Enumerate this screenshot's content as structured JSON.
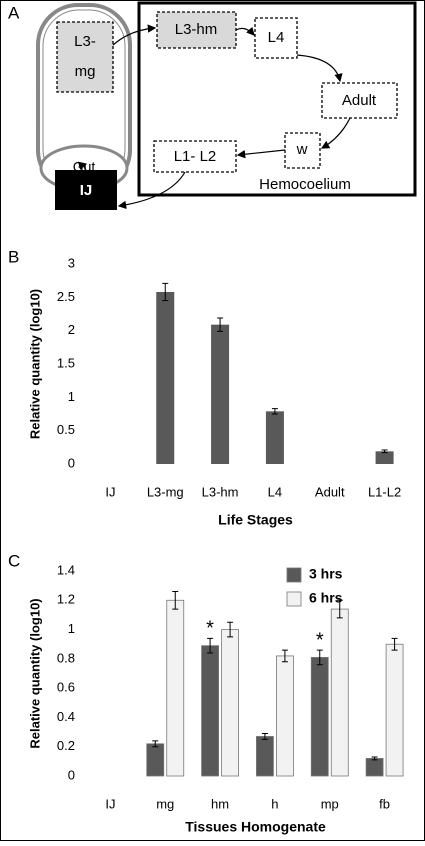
{
  "panel_labels": [
    "A",
    "B",
    "C"
  ],
  "diagram": {
    "midgut_stage": [
      "L3-",
      "mg"
    ],
    "gut": "Gut",
    "infective_juvenile": "IJ",
    "compartment": "Hemocoelium",
    "stages": [
      "L3-hm",
      "L4",
      "Adult",
      "w",
      "L1- L2"
    ]
  },
  "chart_data": [
    {
      "type": "bar",
      "ylabel": "Relative quantity (log10)",
      "xlabel": "Life Stages",
      "categories": [
        "IJ",
        "L3-mg",
        "L3-hm",
        "L4",
        "Adult",
        "L1-L2"
      ],
      "series": [
        {
          "color": "#595959",
          "values": [
            0,
            2.58,
            2.09,
            0.79,
            0,
            0.19
          ],
          "errors": [
            0,
            0.13,
            0.1,
            0.04,
            0,
            0.02
          ]
        }
      ],
      "ylim": [
        0,
        3
      ],
      "yticks": [
        0,
        0.5,
        1,
        1.5,
        2,
        2.5,
        3
      ],
      "grid": false
    },
    {
      "type": "bar",
      "ylabel": "Relative quantity (log10)",
      "xlabel": "Tissues Homogenate",
      "categories": [
        "IJ",
        "mg",
        "hm",
        "h",
        "mp",
        "fb"
      ],
      "series": [
        {
          "name": "3 hrs",
          "color": "#595959",
          "values": [
            0,
            0.22,
            0.89,
            0.27,
            0.81,
            0.12
          ],
          "errors": [
            0,
            0.02,
            0.05,
            0.02,
            0.05,
            0.01
          ]
        },
        {
          "name": "6 hrs",
          "color": "#f2f2f2",
          "values": [
            0,
            1.2,
            1.0,
            0.82,
            1.14,
            0.9
          ],
          "errors": [
            0,
            0.06,
            0.05,
            0.04,
            0.06,
            0.04
          ]
        }
      ],
      "annotations": [
        {
          "text": "*",
          "series": 0,
          "category": "hm"
        },
        {
          "text": "*",
          "series": 0,
          "category": "mp"
        }
      ],
      "ylim": [
        0,
        1.4
      ],
      "yticks": [
        0,
        0.2,
        0.4,
        0.6,
        0.8,
        1,
        1.2,
        1.4
      ],
      "grid": false,
      "legend": "top-right"
    }
  ]
}
